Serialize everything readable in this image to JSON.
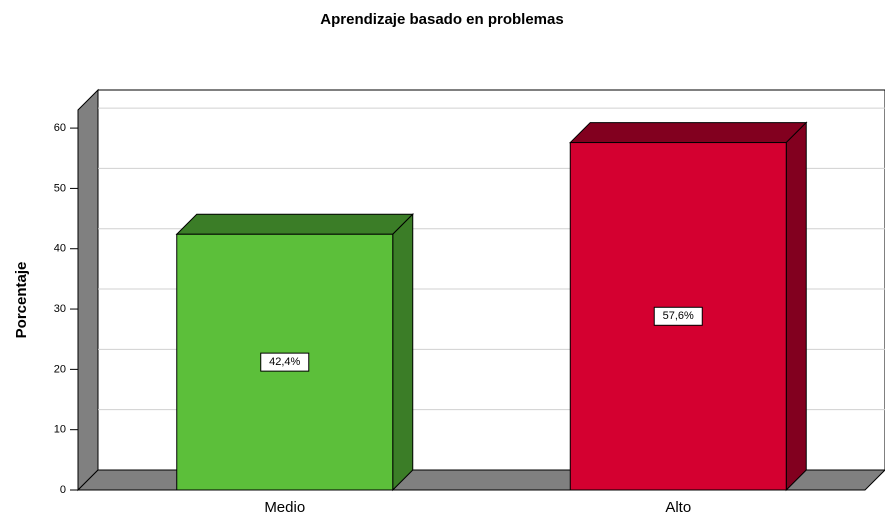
{
  "chart_data": {
    "type": "bar",
    "title": "Aprendizaje basado en problemas",
    "y_label": "Porcentaje",
    "categories": [
      "Medio",
      "Alto"
    ],
    "values": [
      42.4,
      57.6
    ],
    "value_labels": [
      "42,4%",
      "57,6%"
    ],
    "colors": [
      "#5cbf3a",
      "#d40030"
    ],
    "shade_colors": [
      "#3b7d27",
      "#82001f"
    ],
    "ylim": [
      0,
      63
    ],
    "yticks": [
      0,
      10,
      20,
      30,
      40,
      50,
      60
    ],
    "grid": true
  }
}
